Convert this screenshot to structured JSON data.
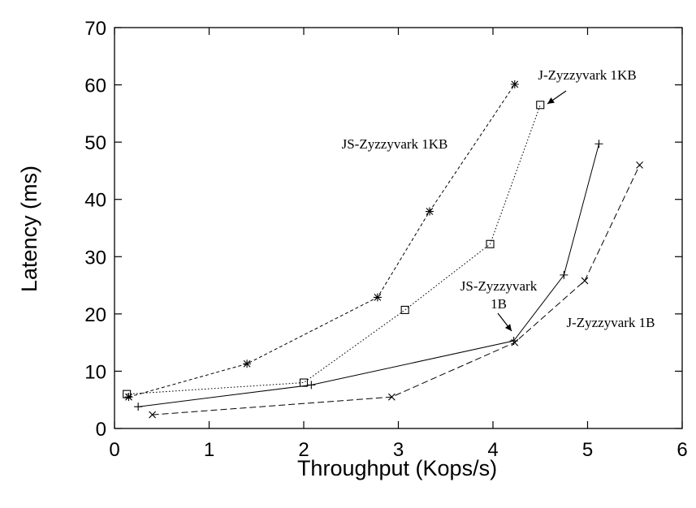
{
  "chart_data": {
    "type": "line",
    "title": "",
    "xlabel": "Throughput (Kops/s)",
    "ylabel": "Latency (ms)",
    "xlim": [
      0,
      6
    ],
    "ylim": [
      0,
      70
    ],
    "xticks": [
      0,
      1,
      2,
      3,
      4,
      5,
      6
    ],
    "yticks": [
      0,
      10,
      20,
      30,
      40,
      50,
      60,
      70
    ],
    "grid": false,
    "legend": "inline labels",
    "series": [
      {
        "name": "JS-Zyzzyvark 1KB",
        "marker": "asterisk",
        "dash": "dashed-fine",
        "points": [
          [
            0.15,
            5.5
          ],
          [
            1.4,
            11.3
          ],
          [
            2.78,
            22.9
          ],
          [
            3.33,
            37.9
          ],
          [
            4.23,
            60.1
          ]
        ]
      },
      {
        "name": "J-Zyzzyvark 1KB",
        "marker": "square",
        "dash": "dotted",
        "points": [
          [
            0.13,
            6.0
          ],
          [
            2.0,
            8.0
          ],
          [
            3.07,
            20.7
          ],
          [
            3.97,
            32.2
          ],
          [
            4.5,
            56.5
          ]
        ]
      },
      {
        "name": "JS-Zyzzyvark 1B",
        "marker": "plus",
        "dash": "solid",
        "points": [
          [
            0.25,
            3.8
          ],
          [
            2.08,
            7.6
          ],
          [
            4.22,
            15.3
          ],
          [
            4.75,
            26.8
          ],
          [
            5.12,
            49.7
          ]
        ]
      },
      {
        "name": "J-Zyzzyvark 1B",
        "marker": "cross",
        "dash": "dashed",
        "points": [
          [
            0.4,
            2.4
          ],
          [
            2.93,
            5.5
          ],
          [
            4.23,
            15.0
          ],
          [
            4.97,
            25.8
          ],
          [
            5.55,
            46.0
          ]
        ]
      }
    ],
    "labels": [
      {
        "series": 0,
        "text": "JS-Zyzzyvark 1KB"
      },
      {
        "series": 1,
        "text": "J-Zyzzyvark 1KB"
      },
      {
        "series": 2,
        "text": [
          "JS-Zyzzyvark",
          "1B"
        ]
      },
      {
        "series": 3,
        "text": "J-Zyzzyvark 1B"
      }
    ]
  }
}
